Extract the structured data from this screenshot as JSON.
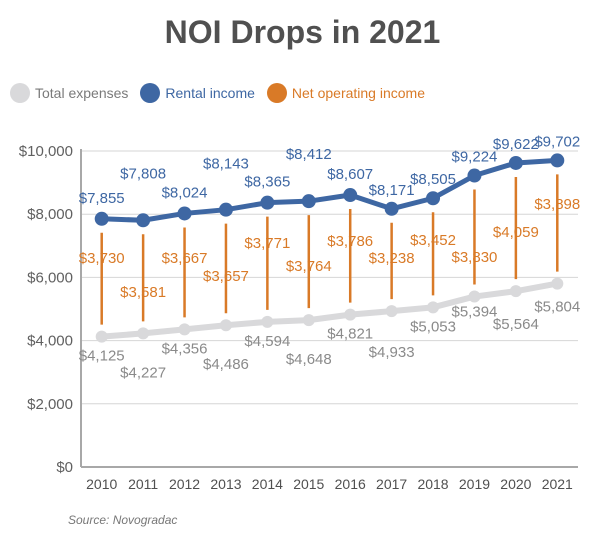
{
  "chart_data": {
    "type": "line",
    "title": "NOI Drops in 2021",
    "source": "Source: Novogradac",
    "x": [
      "2010",
      "2011",
      "2012",
      "2013",
      "2014",
      "2015",
      "2016",
      "2017",
      "2018",
      "2019",
      "2020",
      "2021"
    ],
    "ylim": [
      0,
      10000
    ],
    "yticks": [
      0,
      2000,
      4000,
      6000,
      8000,
      10000
    ],
    "ytick_labels": [
      "$0",
      "$2,000",
      "$4,000",
      "$6,000",
      "$8,000",
      "$10,000"
    ],
    "grid": true,
    "legend_position": "top-left",
    "series": [
      {
        "name": "Total expenses",
        "color": "#d9d9db",
        "label_color": "#8a8a8a",
        "values": [
          4125,
          4227,
          4356,
          4486,
          4594,
          4648,
          4821,
          4933,
          5053,
          5394,
          5564,
          5804
        ],
        "labels": [
          "$4,125",
          "$4,227",
          "$4,356",
          "$4,486",
          "$4,594",
          "$4,648",
          "$4,821",
          "$4,933",
          "$5,053",
          "$5,394",
          "$5,564",
          "$5,804"
        ]
      },
      {
        "name": "Rental income",
        "color": "#3e67a3",
        "label_color": "#3e67a3",
        "values": [
          7855,
          7808,
          8024,
          8143,
          8365,
          8412,
          8607,
          8171,
          8505,
          9224,
          9622,
          9702
        ],
        "labels": [
          "$7,855",
          "$7,808",
          "$8,024",
          "$8,143",
          "$8,365",
          "$8,412",
          "$8,607",
          "$8,171",
          "$8,505",
          "$9,224",
          "$9,622",
          "$9,702"
        ]
      },
      {
        "name": "Net operating income",
        "color": "#d97a27",
        "label_color": "#d97a27",
        "values": [
          3730,
          3581,
          3667,
          3657,
          3771,
          3764,
          3786,
          3238,
          3452,
          3830,
          4059,
          3898
        ],
        "labels": [
          "$3,730",
          "$3,581",
          "$3,667",
          "$3,657",
          "$3,771",
          "$3,764",
          "$3,786",
          "$3,238",
          "$3,452",
          "$3,830",
          "$4,059",
          "$3,898"
        ]
      }
    ]
  }
}
